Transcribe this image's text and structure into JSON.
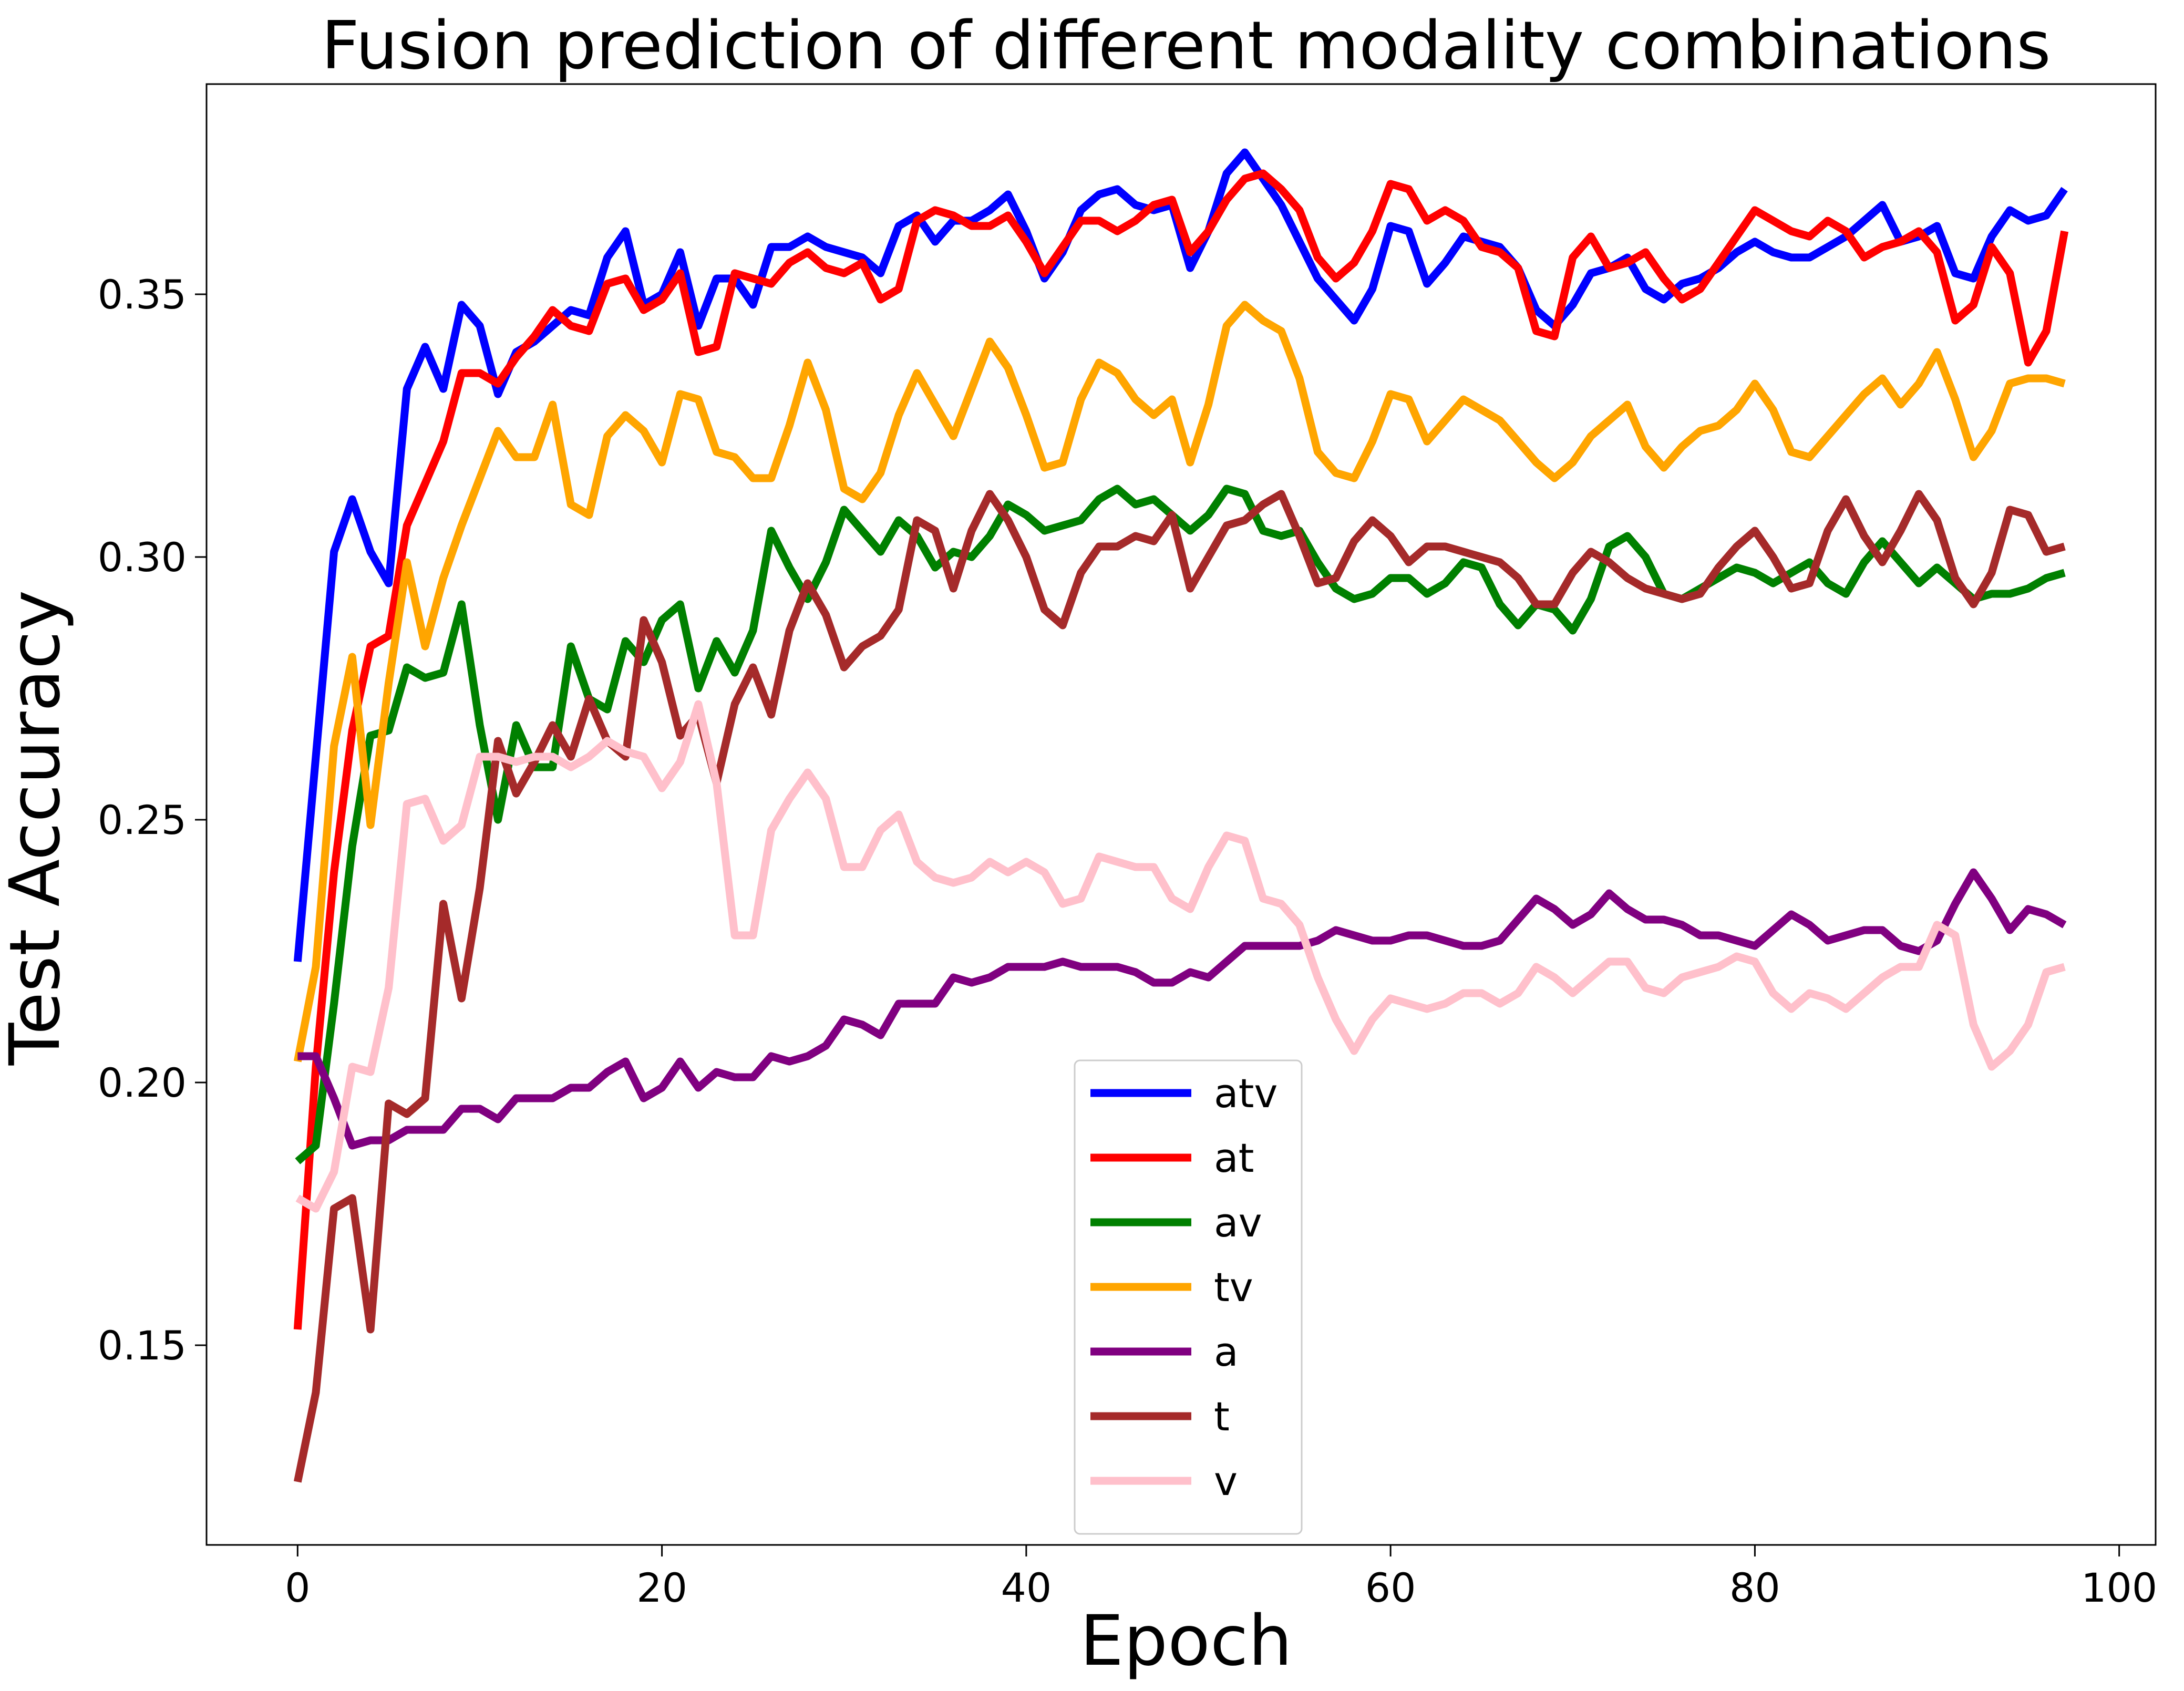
{
  "chart_data": {
    "type": "line",
    "title": "Fusion prediction of different modality combinations",
    "xlabel": "Epoch",
    "ylabel": "Test Accuracy",
    "xlim": [
      -5,
      102
    ],
    "ylim": [
      0.112,
      0.39
    ],
    "xticks": [
      0,
      20,
      40,
      60,
      80,
      100
    ],
    "yticks": [
      0.15,
      0.2,
      0.25,
      0.3,
      0.35
    ],
    "xtick_labels": [
      "0",
      "20",
      "40",
      "60",
      "80",
      "100"
    ],
    "ytick_labels": [
      "0.15",
      "0.20",
      "0.25",
      "0.30",
      "0.35"
    ],
    "grid": false,
    "legend_position": "bottom-center",
    "series": [
      {
        "name": "atv",
        "color": "#0000ff",
        "values": [
          0.223,
          0.262,
          0.301,
          0.311,
          0.301,
          0.295,
          0.332,
          0.34,
          0.332,
          0.348,
          0.344,
          0.331,
          0.339,
          0.341,
          0.344,
          0.347,
          0.346,
          0.357,
          0.362,
          0.348,
          0.35,
          0.358,
          0.344,
          0.353,
          0.353,
          0.348,
          0.359,
          0.359,
          0.361,
          0.359,
          0.358,
          0.357,
          0.354,
          0.363,
          0.365,
          0.36,
          0.364,
          0.364,
          0.366,
          0.369,
          0.362,
          0.353,
          0.358,
          0.366,
          0.369,
          0.37,
          0.367,
          0.366,
          0.367,
          0.355,
          0.362,
          0.373,
          0.377,
          0.372,
          0.367,
          0.36,
          0.353,
          0.349,
          0.345,
          0.351,
          0.363,
          0.362,
          0.352,
          0.356,
          0.361,
          0.36,
          0.359,
          0.355,
          0.347,
          0.344,
          0.348,
          0.354,
          0.355,
          0.357,
          0.351,
          0.349,
          0.352,
          0.353,
          0.355,
          0.358,
          0.36,
          0.358,
          0.357,
          0.357,
          0.359,
          0.361,
          0.364,
          0.367,
          0.36,
          0.361,
          0.363,
          0.354,
          0.353,
          0.361,
          0.366,
          0.364,
          0.365,
          0.37
        ]
      },
      {
        "name": "at",
        "color": "#ff0000",
        "values": [
          0.153,
          0.203,
          0.24,
          0.267,
          0.283,
          0.285,
          0.306,
          0.314,
          0.322,
          0.335,
          0.335,
          0.333,
          0.338,
          0.342,
          0.347,
          0.344,
          0.343,
          0.352,
          0.353,
          0.347,
          0.349,
          0.354,
          0.339,
          0.34,
          0.354,
          0.353,
          0.352,
          0.356,
          0.358,
          0.355,
          0.354,
          0.356,
          0.349,
          0.351,
          0.364,
          0.366,
          0.365,
          0.363,
          0.363,
          0.365,
          0.36,
          0.354,
          0.359,
          0.364,
          0.364,
          0.362,
          0.364,
          0.367,
          0.368,
          0.358,
          0.362,
          0.368,
          0.372,
          0.373,
          0.37,
          0.366,
          0.357,
          0.353,
          0.356,
          0.362,
          0.371,
          0.37,
          0.364,
          0.366,
          0.364,
          0.359,
          0.358,
          0.355,
          0.343,
          0.342,
          0.357,
          0.361,
          0.355,
          0.356,
          0.358,
          0.353,
          0.349,
          0.351,
          0.356,
          0.361,
          0.366,
          0.364,
          0.362,
          0.361,
          0.364,
          0.362,
          0.357,
          0.359,
          0.36,
          0.362,
          0.358,
          0.345,
          0.348,
          0.359,
          0.354,
          0.337,
          0.343,
          0.362
        ]
      },
      {
        "name": "av",
        "color": "#008000",
        "values": [
          0.185,
          0.188,
          0.215,
          0.245,
          0.266,
          0.267,
          0.279,
          0.277,
          0.278,
          0.291,
          0.268,
          0.25,
          0.268,
          0.26,
          0.26,
          0.283,
          0.273,
          0.271,
          0.284,
          0.28,
          0.288,
          0.291,
          0.275,
          0.284,
          0.278,
          0.286,
          0.305,
          0.298,
          0.292,
          0.299,
          0.309,
          0.305,
          0.301,
          0.307,
          0.304,
          0.298,
          0.301,
          0.3,
          0.304,
          0.31,
          0.308,
          0.305,
          0.306,
          0.307,
          0.311,
          0.313,
          0.31,
          0.311,
          0.308,
          0.305,
          0.308,
          0.313,
          0.312,
          0.305,
          0.304,
          0.305,
          0.299,
          0.294,
          0.292,
          0.293,
          0.296,
          0.296,
          0.293,
          0.295,
          0.299,
          0.298,
          0.291,
          0.287,
          0.291,
          0.29,
          0.286,
          0.292,
          0.302,
          0.304,
          0.3,
          0.293,
          0.292,
          0.294,
          0.296,
          0.298,
          0.297,
          0.295,
          0.297,
          0.299,
          0.295,
          0.293,
          0.299,
          0.303,
          0.299,
          0.295,
          0.298,
          0.295,
          0.292,
          0.293,
          0.293,
          0.294,
          0.296,
          0.297
        ]
      },
      {
        "name": "tv",
        "color": "#ffa500",
        "values": [
          0.204,
          0.222,
          0.264,
          0.281,
          0.249,
          0.276,
          0.299,
          0.283,
          0.296,
          0.306,
          0.315,
          0.324,
          0.319,
          0.319,
          0.329,
          0.31,
          0.308,
          0.323,
          0.327,
          0.324,
          0.318,
          0.331,
          0.33,
          0.32,
          0.319,
          0.315,
          0.315,
          0.325,
          0.337,
          0.328,
          0.313,
          0.311,
          0.316,
          0.327,
          0.335,
          0.329,
          0.323,
          0.332,
          0.341,
          0.336,
          0.327,
          0.317,
          0.318,
          0.33,
          0.337,
          0.335,
          0.33,
          0.327,
          0.33,
          0.318,
          0.329,
          0.344,
          0.348,
          0.345,
          0.343,
          0.334,
          0.32,
          0.316,
          0.315,
          0.322,
          0.331,
          0.33,
          0.322,
          0.326,
          0.33,
          0.328,
          0.326,
          0.322,
          0.318,
          0.315,
          0.318,
          0.323,
          0.326,
          0.329,
          0.321,
          0.317,
          0.321,
          0.324,
          0.325,
          0.328,
          0.333,
          0.328,
          0.32,
          0.319,
          0.323,
          0.327,
          0.331,
          0.334,
          0.329,
          0.333,
          0.339,
          0.33,
          0.319,
          0.324,
          0.333,
          0.334,
          0.334,
          0.333
        ]
      },
      {
        "name": "a",
        "color": "#800080",
        "values": [
          0.205,
          0.205,
          0.197,
          0.188,
          0.189,
          0.189,
          0.191,
          0.191,
          0.191,
          0.195,
          0.195,
          0.193,
          0.197,
          0.197,
          0.197,
          0.199,
          0.199,
          0.202,
          0.204,
          0.197,
          0.199,
          0.204,
          0.199,
          0.202,
          0.201,
          0.201,
          0.205,
          0.204,
          0.205,
          0.207,
          0.212,
          0.211,
          0.209,
          0.215,
          0.215,
          0.215,
          0.22,
          0.219,
          0.22,
          0.222,
          0.222,
          0.222,
          0.223,
          0.222,
          0.222,
          0.222,
          0.221,
          0.219,
          0.219,
          0.221,
          0.22,
          0.223,
          0.226,
          0.226,
          0.226,
          0.226,
          0.227,
          0.229,
          0.228,
          0.227,
          0.227,
          0.228,
          0.228,
          0.227,
          0.226,
          0.226,
          0.227,
          0.231,
          0.235,
          0.233,
          0.23,
          0.232,
          0.236,
          0.233,
          0.231,
          0.231,
          0.23,
          0.228,
          0.228,
          0.227,
          0.226,
          0.229,
          0.232,
          0.23,
          0.227,
          0.228,
          0.229,
          0.229,
          0.226,
          0.225,
          0.227,
          0.234,
          0.24,
          0.235,
          0.229,
          0.233,
          0.232,
          0.23
        ]
      },
      {
        "name": "t",
        "color": "#a52a2a",
        "values": [
          0.124,
          0.141,
          0.176,
          0.178,
          0.153,
          0.196,
          0.194,
          0.197,
          0.234,
          0.216,
          0.237,
          0.265,
          0.255,
          0.261,
          0.268,
          0.262,
          0.273,
          0.265,
          0.262,
          0.288,
          0.28,
          0.266,
          0.27,
          0.257,
          0.272,
          0.279,
          0.27,
          0.286,
          0.295,
          0.289,
          0.279,
          0.283,
          0.285,
          0.29,
          0.307,
          0.305,
          0.294,
          0.305,
          0.312,
          0.307,
          0.3,
          0.29,
          0.287,
          0.297,
          0.302,
          0.302,
          0.304,
          0.303,
          0.308,
          0.294,
          0.3,
          0.306,
          0.307,
          0.31,
          0.312,
          0.304,
          0.295,
          0.296,
          0.303,
          0.307,
          0.304,
          0.299,
          0.302,
          0.302,
          0.301,
          0.3,
          0.299,
          0.296,
          0.291,
          0.291,
          0.297,
          0.301,
          0.299,
          0.296,
          0.294,
          0.293,
          0.292,
          0.293,
          0.298,
          0.302,
          0.305,
          0.3,
          0.294,
          0.295,
          0.305,
          0.311,
          0.304,
          0.299,
          0.305,
          0.312,
          0.307,
          0.296,
          0.291,
          0.297,
          0.309,
          0.308,
          0.301,
          0.302
        ]
      },
      {
        "name": "v",
        "color": "#ffc0cb",
        "values": [
          0.178,
          0.176,
          0.183,
          0.203,
          0.202,
          0.218,
          0.253,
          0.254,
          0.246,
          0.249,
          0.262,
          0.262,
          0.261,
          0.262,
          0.262,
          0.26,
          0.262,
          0.265,
          0.263,
          0.262,
          0.256,
          0.261,
          0.272,
          0.257,
          0.228,
          0.228,
          0.248,
          0.254,
          0.259,
          0.254,
          0.241,
          0.241,
          0.248,
          0.251,
          0.242,
          0.239,
          0.238,
          0.239,
          0.242,
          0.24,
          0.242,
          0.24,
          0.234,
          0.235,
          0.243,
          0.242,
          0.241,
          0.241,
          0.235,
          0.233,
          0.241,
          0.247,
          0.246,
          0.235,
          0.234,
          0.23,
          0.22,
          0.212,
          0.206,
          0.212,
          0.216,
          0.215,
          0.214,
          0.215,
          0.217,
          0.217,
          0.215,
          0.217,
          0.222,
          0.22,
          0.217,
          0.22,
          0.223,
          0.223,
          0.218,
          0.217,
          0.22,
          0.221,
          0.222,
          0.224,
          0.223,
          0.217,
          0.214,
          0.217,
          0.216,
          0.214,
          0.217,
          0.22,
          0.222,
          0.222,
          0.23,
          0.228,
          0.211,
          0.203,
          0.206,
          0.211,
          0.221,
          0.222
        ]
      }
    ]
  }
}
